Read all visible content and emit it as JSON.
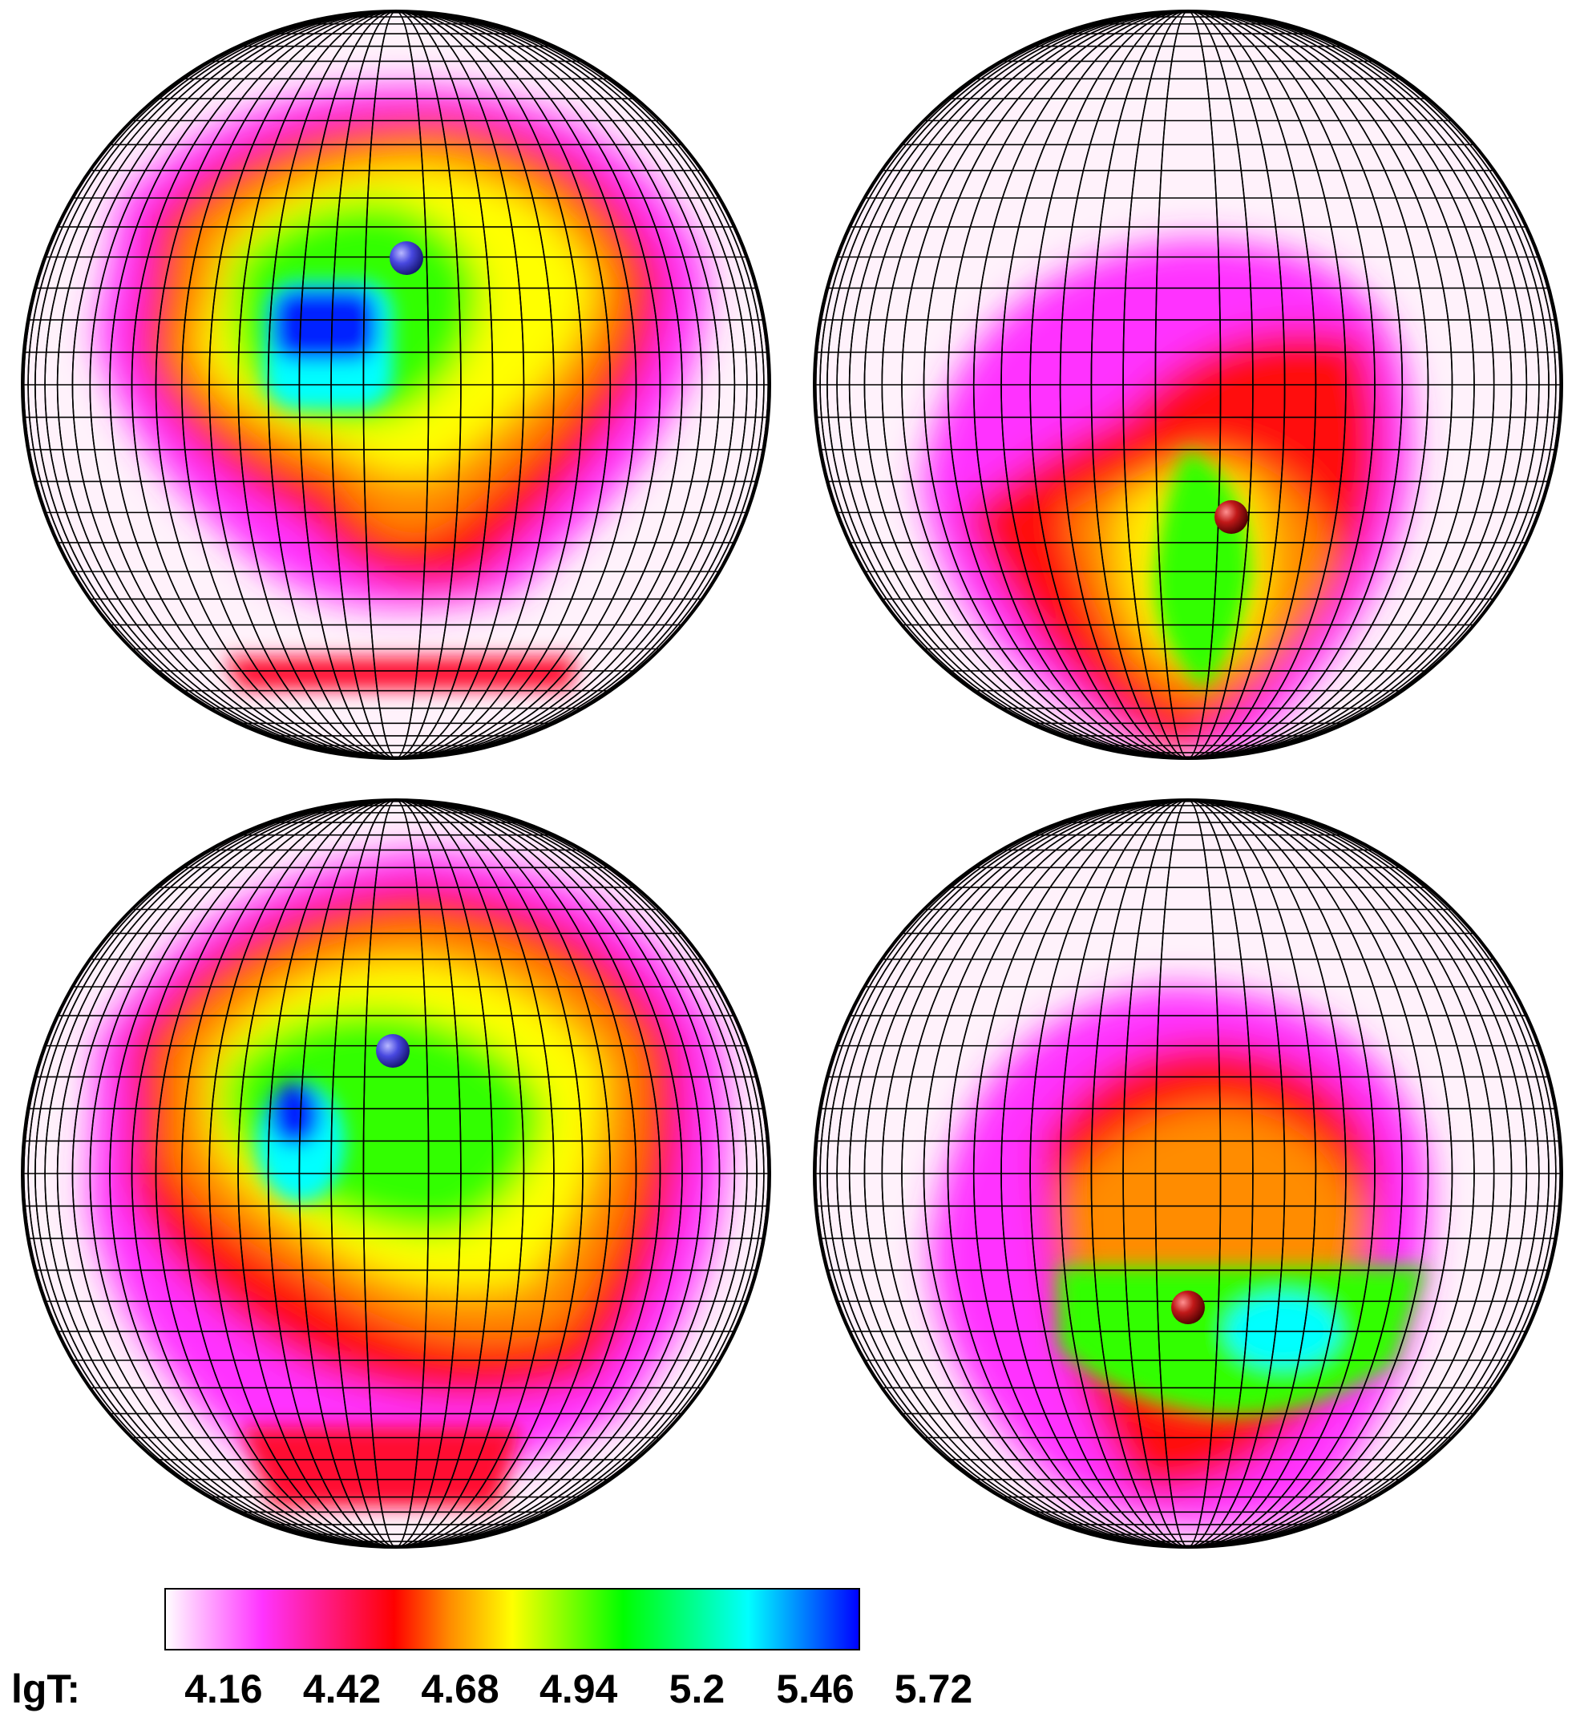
{
  "colormap": {
    "stops": [
      "#ffffff",
      "#ff00ff",
      "#ff0000",
      "#ff8c00",
      "#ffff00",
      "#00ff00",
      "#00ffff",
      "#0000ff"
    ]
  },
  "colorbar": {
    "label": "lgT:",
    "ticks": [
      "4.16",
      "4.42",
      "4.68",
      "4.94",
      "5.2",
      "5.46",
      "5.72"
    ],
    "tick_values": [
      4.16,
      4.42,
      4.68,
      4.94,
      5.2,
      5.46,
      5.72
    ]
  },
  "panels": [
    {
      "id": "top-left",
      "marker": "blue-sphere"
    },
    {
      "id": "top-right",
      "marker": "red-sphere"
    },
    {
      "id": "bottom-left",
      "marker": "blue-sphere"
    },
    {
      "id": "bottom-right",
      "marker": "red-sphere"
    }
  ],
  "marker_colors": {
    "blue-sphere": "#3b3bd8",
    "red-sphere": "#b01010"
  }
}
